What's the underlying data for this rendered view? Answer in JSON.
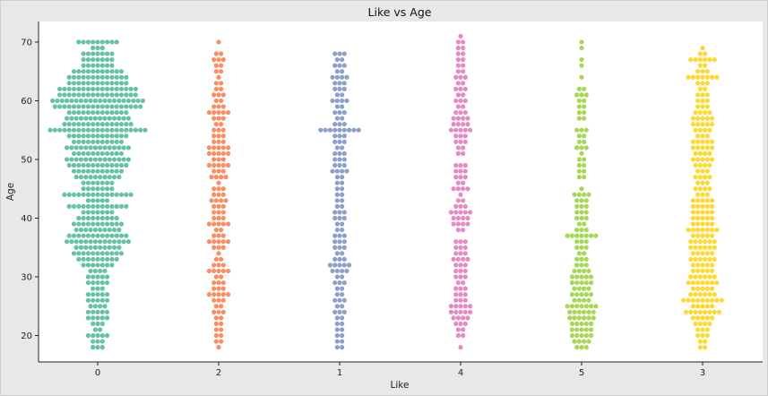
{
  "chart_data": {
    "type": "scatter",
    "subtype": "swarm",
    "title": "Like vs Age",
    "xlabel": "Like",
    "ylabel": "Age",
    "categories": [
      "0",
      "2",
      "1",
      "4",
      "5",
      "3"
    ],
    "ylim": [
      15.5,
      73.5
    ],
    "yticks": [
      20,
      30,
      40,
      50,
      60,
      70
    ],
    "grid": false,
    "legend": "none",
    "colors": [
      "#66c2a5",
      "#fc8d62",
      "#8da0cb",
      "#e78ac3",
      "#a6d854",
      "#ffd92f"
    ],
    "series": [
      {
        "category": "0",
        "counts_by_age": {
          "18": 3,
          "19": 3,
          "20": 5,
          "21": 2,
          "22": 3,
          "23": 5,
          "24": 5,
          "25": 4,
          "26": 5,
          "27": 5,
          "28": 3,
          "29": 5,
          "30": 5,
          "31": 4,
          "32": 7,
          "33": 9,
          "34": 11,
          "35": 10,
          "36": 14,
          "37": 13,
          "38": 10,
          "39": 11,
          "40": 9,
          "41": 7,
          "42": 13,
          "43": 5,
          "44": 15,
          "45": 7,
          "46": 7,
          "47": 10,
          "48": 11,
          "49": 13,
          "50": 14,
          "51": 11,
          "52": 14,
          "53": 11,
          "54": 13,
          "55": 21,
          "56": 15,
          "57": 14,
          "58": 13,
          "59": 19,
          "60": 20,
          "61": 17,
          "62": 17,
          "63": 13,
          "64": 13,
          "65": 11,
          "66": 7,
          "67": 7,
          "68": 7,
          "69": 3,
          "70": 9
        }
      },
      {
        "category": "2",
        "counts_by_age": {
          "18": 1,
          "19": 2,
          "20": 2,
          "21": 2,
          "22": 2,
          "23": 2,
          "24": 3,
          "25": 2,
          "26": 3,
          "27": 5,
          "28": 3,
          "29": 3,
          "30": 2,
          "31": 5,
          "32": 3,
          "33": 2,
          "34": 1,
          "35": 3,
          "36": 5,
          "37": 3,
          "38": 2,
          "39": 5,
          "40": 3,
          "41": 3,
          "42": 3,
          "43": 4,
          "44": 3,
          "45": 3,
          "46": 1,
          "47": 4,
          "48": 3,
          "49": 5,
          "50": 3,
          "51": 5,
          "52": 5,
          "53": 3,
          "54": 3,
          "55": 3,
          "56": 2,
          "57": 3,
          "58": 5,
          "59": 3,
          "60": 2,
          "61": 3,
          "62": 2,
          "63": 2,
          "64": 1,
          "65": 2,
          "66": 2,
          "67": 3,
          "68": 2,
          "70": 1
        }
      },
      {
        "category": "1",
        "counts_by_age": {
          "18": 2,
          "19": 2,
          "20": 2,
          "21": 2,
          "22": 2,
          "23": 2,
          "24": 3,
          "25": 2,
          "26": 3,
          "27": 2,
          "28": 2,
          "29": 3,
          "30": 2,
          "31": 4,
          "32": 5,
          "33": 3,
          "34": 2,
          "35": 3,
          "36": 3,
          "37": 3,
          "38": 2,
          "39": 2,
          "40": 3,
          "41": 3,
          "42": 2,
          "43": 2,
          "44": 2,
          "45": 2,
          "46": 2,
          "47": 2,
          "48": 4,
          "49": 3,
          "50": 3,
          "51": 3,
          "52": 2,
          "53": 3,
          "54": 3,
          "55": 9,
          "56": 3,
          "57": 2,
          "58": 3,
          "59": 2,
          "60": 4,
          "61": 2,
          "62": 3,
          "63": 3,
          "64": 4,
          "65": 2,
          "66": 3,
          "67": 2,
          "68": 3
        }
      },
      {
        "category": "4",
        "counts_by_age": {
          "18": 1,
          "20": 2,
          "21": 2,
          "22": 3,
          "23": 4,
          "24": 5,
          "25": 5,
          "26": 3,
          "27": 3,
          "28": 3,
          "29": 2,
          "30": 3,
          "31": 3,
          "32": 3,
          "33": 4,
          "34": 3,
          "35": 3,
          "36": 3,
          "38": 2,
          "39": 4,
          "40": 4,
          "41": 5,
          "42": 3,
          "43": 2,
          "44": 1,
          "45": 4,
          "46": 2,
          "47": 3,
          "48": 3,
          "49": 3,
          "51": 2,
          "52": 2,
          "53": 3,
          "54": 3,
          "55": 5,
          "56": 4,
          "57": 4,
          "58": 3,
          "59": 2,
          "60": 3,
          "61": 2,
          "62": 3,
          "63": 2,
          "64": 3,
          "65": 2,
          "66": 2,
          "67": 2,
          "68": 2,
          "69": 2,
          "70": 2,
          "71": 1
        }
      },
      {
        "category": "5",
        "counts_by_age": {
          "18": 3,
          "19": 4,
          "20": 5,
          "21": 5,
          "22": 5,
          "23": 6,
          "24": 6,
          "25": 7,
          "26": 4,
          "27": 5,
          "28": 4,
          "29": 5,
          "30": 5,
          "31": 4,
          "32": 3,
          "33": 3,
          "34": 2,
          "35": 3,
          "36": 3,
          "37": 7,
          "38": 3,
          "39": 2,
          "40": 3,
          "41": 3,
          "42": 3,
          "43": 3,
          "44": 4,
          "45": 1,
          "47": 2,
          "48": 2,
          "49": 2,
          "50": 2,
          "51": 1,
          "52": 3,
          "53": 2,
          "54": 2,
          "55": 3,
          "57": 2,
          "58": 2,
          "59": 2,
          "60": 2,
          "61": 3,
          "62": 2,
          "64": 1,
          "66": 1,
          "67": 1,
          "69": 1,
          "70": 1
        }
      },
      {
        "category": "3",
        "counts_by_age": {
          "18": 2,
          "19": 2,
          "20": 3,
          "21": 3,
          "22": 4,
          "23": 5,
          "24": 8,
          "25": 5,
          "26": 9,
          "27": 6,
          "28": 5,
          "29": 7,
          "30": 6,
          "31": 5,
          "32": 5,
          "33": 6,
          "34": 5,
          "35": 6,
          "36": 6,
          "37": 5,
          "38": 7,
          "39": 5,
          "40": 5,
          "41": 5,
          "42": 5,
          "43": 5,
          "44": 3,
          "45": 4,
          "46": 3,
          "47": 4,
          "48": 3,
          "49": 4,
          "50": 5,
          "51": 4,
          "52": 5,
          "53": 5,
          "54": 3,
          "55": 4,
          "56": 5,
          "57": 5,
          "58": 4,
          "59": 3,
          "60": 3,
          "61": 3,
          "62": 2,
          "63": 3,
          "64": 7,
          "65": 3,
          "66": 2,
          "67": 6,
          "68": 2,
          "69": 1
        }
      }
    ]
  }
}
